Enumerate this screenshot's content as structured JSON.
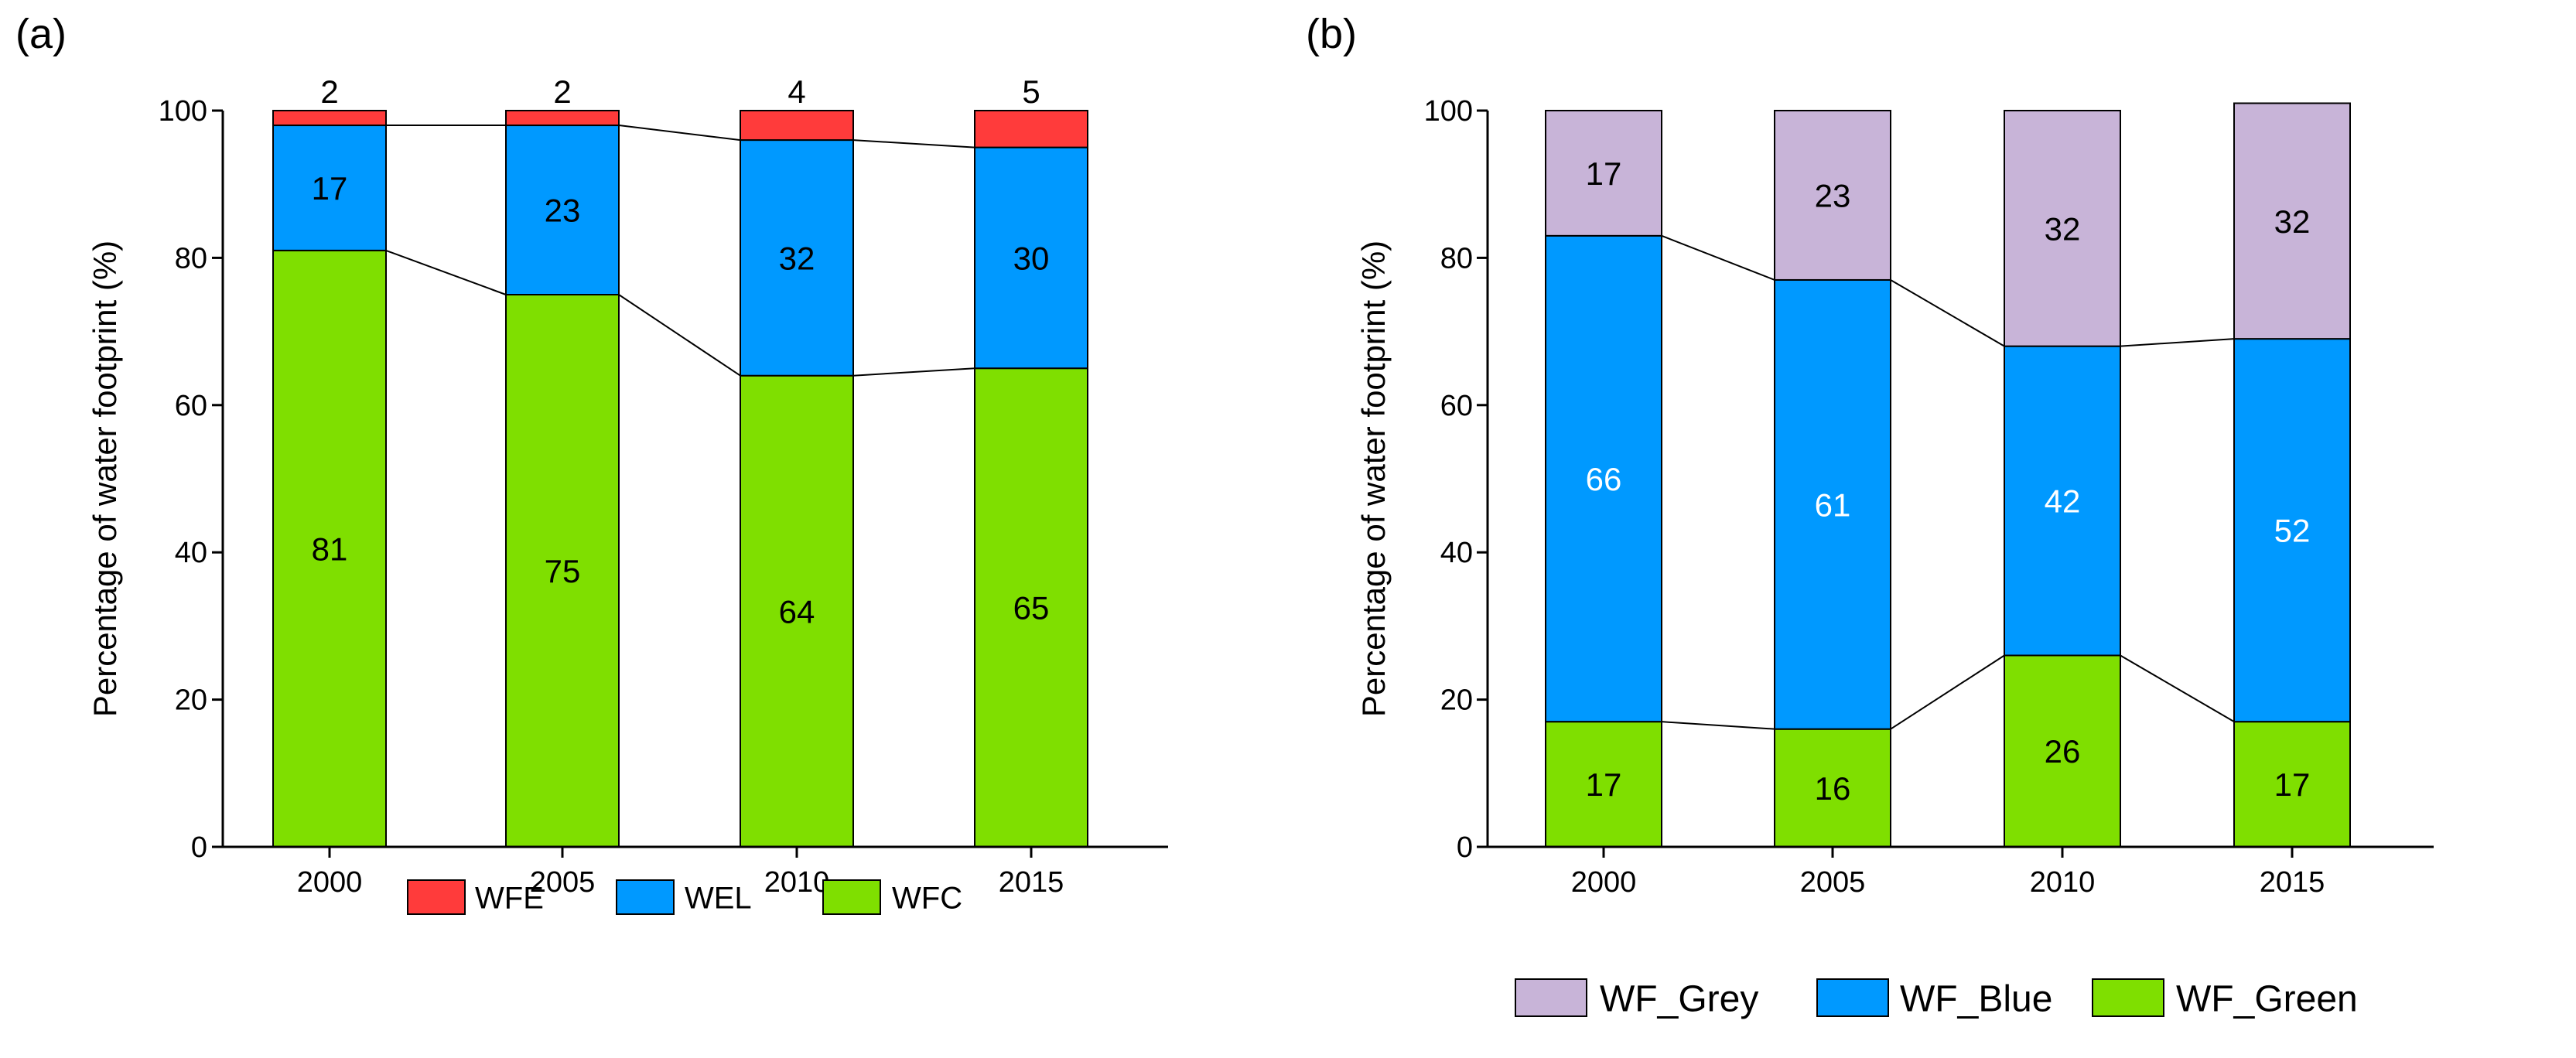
{
  "chart_data": [
    {
      "panel_label": "(a)",
      "type": "bar",
      "stacked": true,
      "categories": [
        "2000",
        "2005",
        "2010",
        "2015"
      ],
      "series": [
        {
          "name": "WFC",
          "color": "#7fdf00",
          "values": [
            81,
            75,
            64,
            65
          ],
          "label_color": "#000000"
        },
        {
          "name": "WEL",
          "color": "#0099ff",
          "values": [
            17,
            23,
            32,
            30
          ],
          "label_color": "#000000"
        },
        {
          "name": "WFE",
          "color": "#ff3b3b",
          "values": [
            2,
            2,
            4,
            5
          ],
          "label_color": "#000000",
          "label_above_bar": true
        }
      ],
      "ylabel": "Percentage of water footprint (%)",
      "ylim": [
        0,
        100
      ],
      "yticks": [
        "0",
        "20",
        "40",
        "60",
        "80",
        "100"
      ],
      "legend": [
        "WFE",
        "WEL",
        "WFC"
      ],
      "legend_position": "bottom"
    },
    {
      "panel_label": "(b)",
      "type": "bar",
      "stacked": true,
      "categories": [
        "2000",
        "2005",
        "2010",
        "2015"
      ],
      "series": [
        {
          "name": "WF_Green",
          "color": "#7fdf00",
          "values": [
            17,
            16,
            26,
            17
          ],
          "label_color": "#000000"
        },
        {
          "name": "WF_Blue",
          "color": "#0099ff",
          "values": [
            66,
            61,
            42,
            52
          ],
          "label_color": "#ffffff"
        },
        {
          "name": "WF_Grey",
          "color": "#c8b4d8",
          "values": [
            17,
            23,
            32,
            32
          ],
          "label_color": "#000000"
        }
      ],
      "ylabel": "Percentage of water footprint (%)",
      "ylim": [
        0,
        100
      ],
      "yticks": [
        "0",
        "20",
        "40",
        "60",
        "80",
        "100"
      ],
      "legend": [
        "WF_Grey",
        "WF_Blue",
        "WF_Green"
      ],
      "legend_position": "bottom"
    }
  ]
}
